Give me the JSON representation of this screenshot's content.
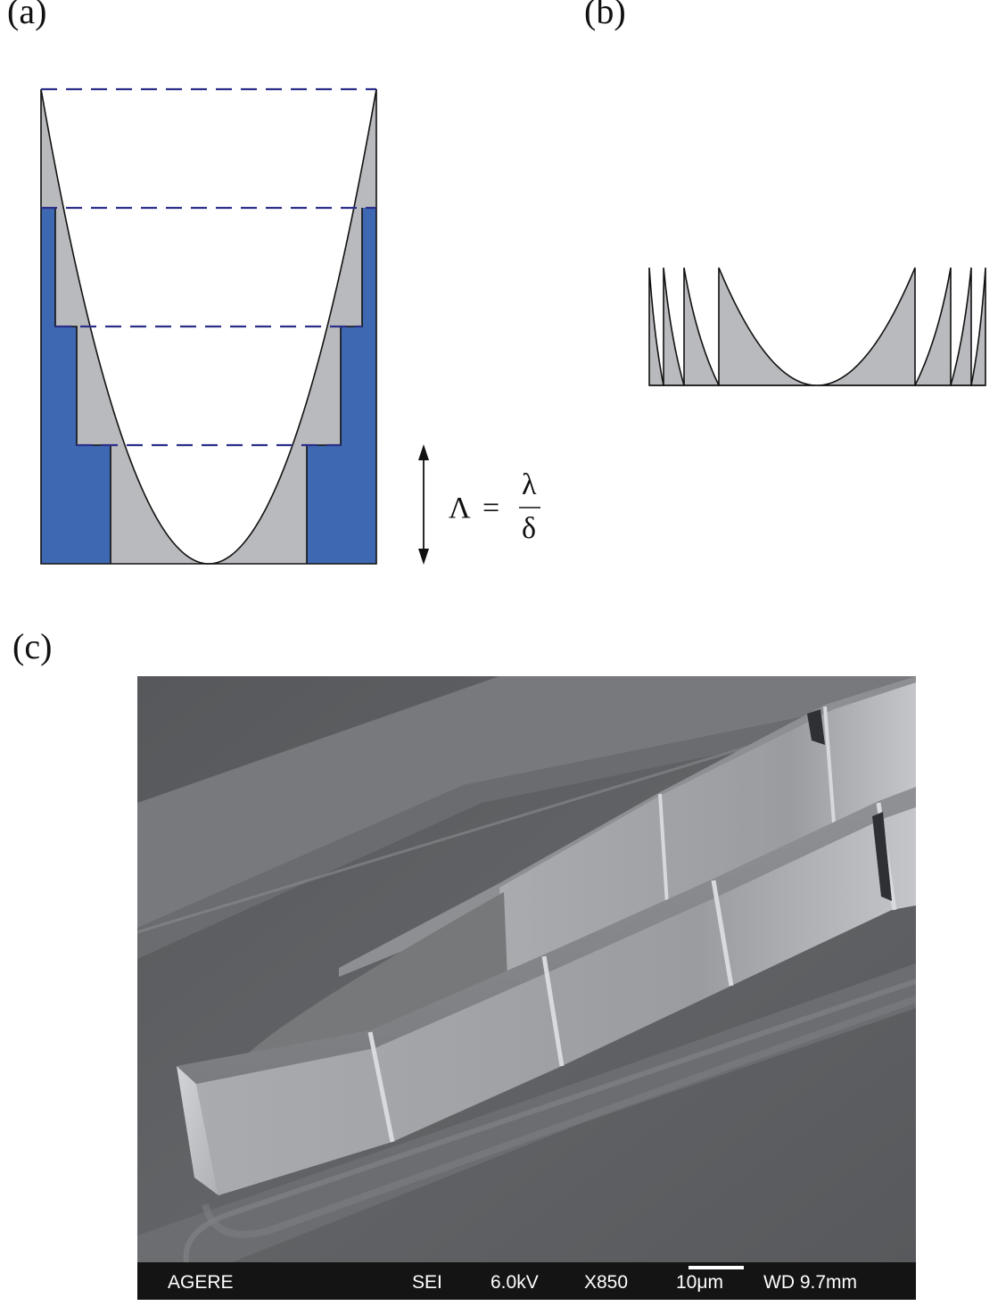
{
  "panels": {
    "a": {
      "label": "(a)"
    },
    "b": {
      "label": "(b)"
    },
    "c": {
      "label": "(c)"
    }
  },
  "equation": {
    "lhs": "Λ",
    "equals": "=",
    "numerator": "λ",
    "denominator": "δ"
  },
  "sem_bar": {
    "brand": "AGERE",
    "mode": "SEI",
    "voltage": "6.0kV",
    "magnification": "X850",
    "scale": "10μm",
    "working_distance": "WD 9.7mm"
  },
  "colors": {
    "blue_fill": "#3f68b3",
    "gray_fill": "#b9babd",
    "dash_line": "#2c2f8a",
    "sem_background": "#5d5f62",
    "sem_bar": "#141414"
  }
}
